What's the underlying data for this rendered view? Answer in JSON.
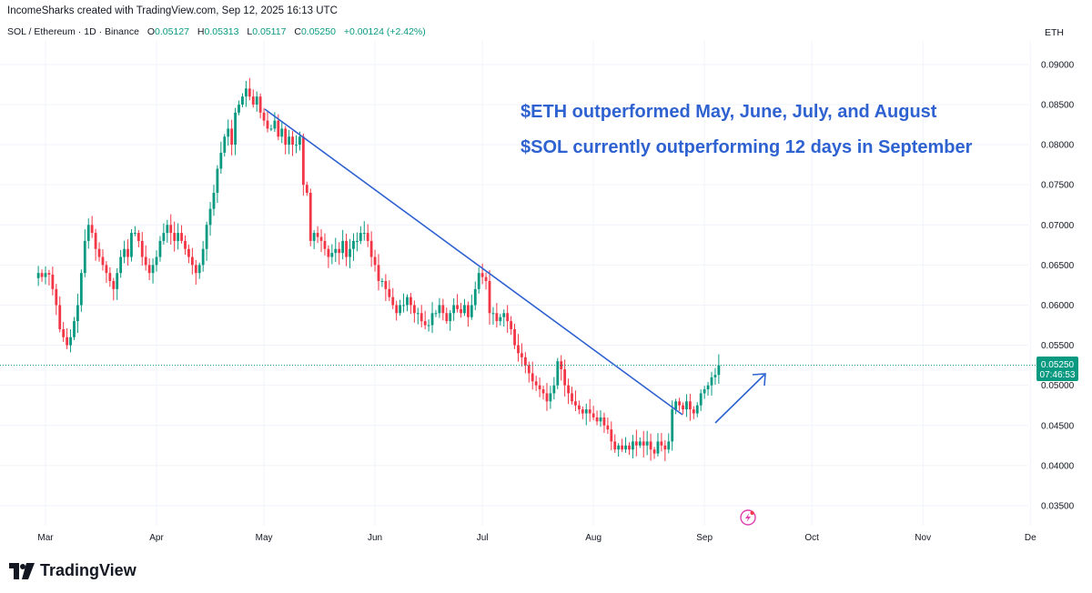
{
  "header": {
    "attribution": "IncomeSharks created with TradingView.com, Sep 12, 2025 16:13 UTC",
    "symbol": "SOL / Ethereum · 1D · Binance",
    "ohlc": {
      "o_label": "O",
      "o": "0.05127",
      "h_label": "H",
      "h": "0.05313",
      "l_label": "L",
      "l": "0.05117",
      "c_label": "C",
      "c": "0.05250",
      "change": "+0.00124 (+2.42%)"
    },
    "currency": "ETH"
  },
  "annotations": {
    "line1": "$ETH outperformed May, June, July, and August",
    "line2": "$SOL currently outperforming 12 days in September"
  },
  "price_tag": {
    "price": "0.05250",
    "countdown": "07:46:53"
  },
  "footer": {
    "brand": "TradingView"
  },
  "colors": {
    "up": "#089981",
    "down": "#f23645",
    "trend": "#2f62d1",
    "grid": "#f0f3fa",
    "text": "#131722",
    "tag": "#089981"
  },
  "chart_data": {
    "type": "candlestick",
    "x_axis": {
      "type": "date",
      "tick_labels": [
        "Mar",
        "Apr",
        "May",
        "Jun",
        "Jul",
        "Aug",
        "Sep",
        "Oct",
        "Nov",
        "De"
      ],
      "tick_dates": [
        "2025-03-01",
        "2025-04-01",
        "2025-05-01",
        "2025-06-01",
        "2025-07-01",
        "2025-08-01",
        "2025-09-01",
        "2025-10-01",
        "2025-11-01",
        "2025-12-01"
      ]
    },
    "y_axis": {
      "range": [
        0.0325,
        0.0918
      ],
      "tick_labels": [
        "0.03500",
        "0.04000",
        "0.04500",
        "0.05000",
        "0.05500",
        "0.06000",
        "0.06500",
        "0.07000",
        "0.07500",
        "0.08000",
        "0.08500",
        "0.09000"
      ],
      "tick_values": [
        0.035,
        0.04,
        0.045,
        0.05,
        0.055,
        0.06,
        0.065,
        0.07,
        0.075,
        0.08,
        0.085,
        0.09
      ]
    },
    "start_date": "2025-02-27",
    "closes": [
      0.064,
      0.0635,
      0.064,
      0.0638,
      0.062,
      0.06,
      0.057,
      0.056,
      0.055,
      0.056,
      0.058,
      0.06,
      0.064,
      0.068,
      0.07,
      0.069,
      0.067,
      0.066,
      0.065,
      0.064,
      0.063,
      0.062,
      0.064,
      0.066,
      0.067,
      0.066,
      0.069,
      0.069,
      0.068,
      0.066,
      0.065,
      0.064,
      0.065,
      0.066,
      0.068,
      0.069,
      0.07,
      0.069,
      0.068,
      0.069,
      0.068,
      0.067,
      0.066,
      0.065,
      0.064,
      0.065,
      0.067,
      0.07,
      0.072,
      0.074,
      0.077,
      0.079,
      0.081,
      0.082,
      0.08,
      0.084,
      0.085,
      0.086,
      0.087,
      0.086,
      0.085,
      0.086,
      0.084,
      0.083,
      0.082,
      0.082,
      0.083,
      0.081,
      0.082,
      0.08,
      0.081,
      0.08,
      0.08,
      0.081,
      0.075,
      0.074,
      0.068,
      0.069,
      0.0685,
      0.068,
      0.067,
      0.066,
      0.0665,
      0.067,
      0.0665,
      0.068,
      0.066,
      0.067,
      0.068,
      0.068,
      0.069,
      0.069,
      0.068,
      0.066,
      0.065,
      0.063,
      0.063,
      0.062,
      0.061,
      0.06,
      0.059,
      0.06,
      0.06,
      0.061,
      0.06,
      0.059,
      0.059,
      0.058,
      0.0575,
      0.0575,
      0.059,
      0.059,
      0.06,
      0.059,
      0.058,
      0.059,
      0.06,
      0.0595,
      0.059,
      0.06,
      0.0585,
      0.06,
      0.062,
      0.064,
      0.0635,
      0.063,
      0.059,
      0.059,
      0.058,
      0.0585,
      0.059,
      0.058,
      0.057,
      0.055,
      0.054,
      0.0535,
      0.0525,
      0.0515,
      0.0505,
      0.05,
      0.0495,
      0.049,
      0.048,
      0.049,
      0.05,
      0.053,
      0.052,
      0.05,
      0.049,
      0.048,
      0.0475,
      0.047,
      0.0465,
      0.047,
      0.0465,
      0.046,
      0.0455,
      0.046,
      0.045,
      0.0445,
      0.043,
      0.042,
      0.0425,
      0.042,
      0.0425,
      0.042,
      0.043,
      0.0425,
      0.043,
      0.0425,
      0.043,
      0.042,
      0.0415,
      0.043,
      0.0425,
      0.042,
      0.043,
      0.047,
      0.048,
      0.0475,
      0.047,
      0.048,
      0.047,
      0.0465,
      0.0475,
      0.049,
      0.0495,
      0.05,
      0.051,
      0.0513,
      0.0525
    ]
  }
}
